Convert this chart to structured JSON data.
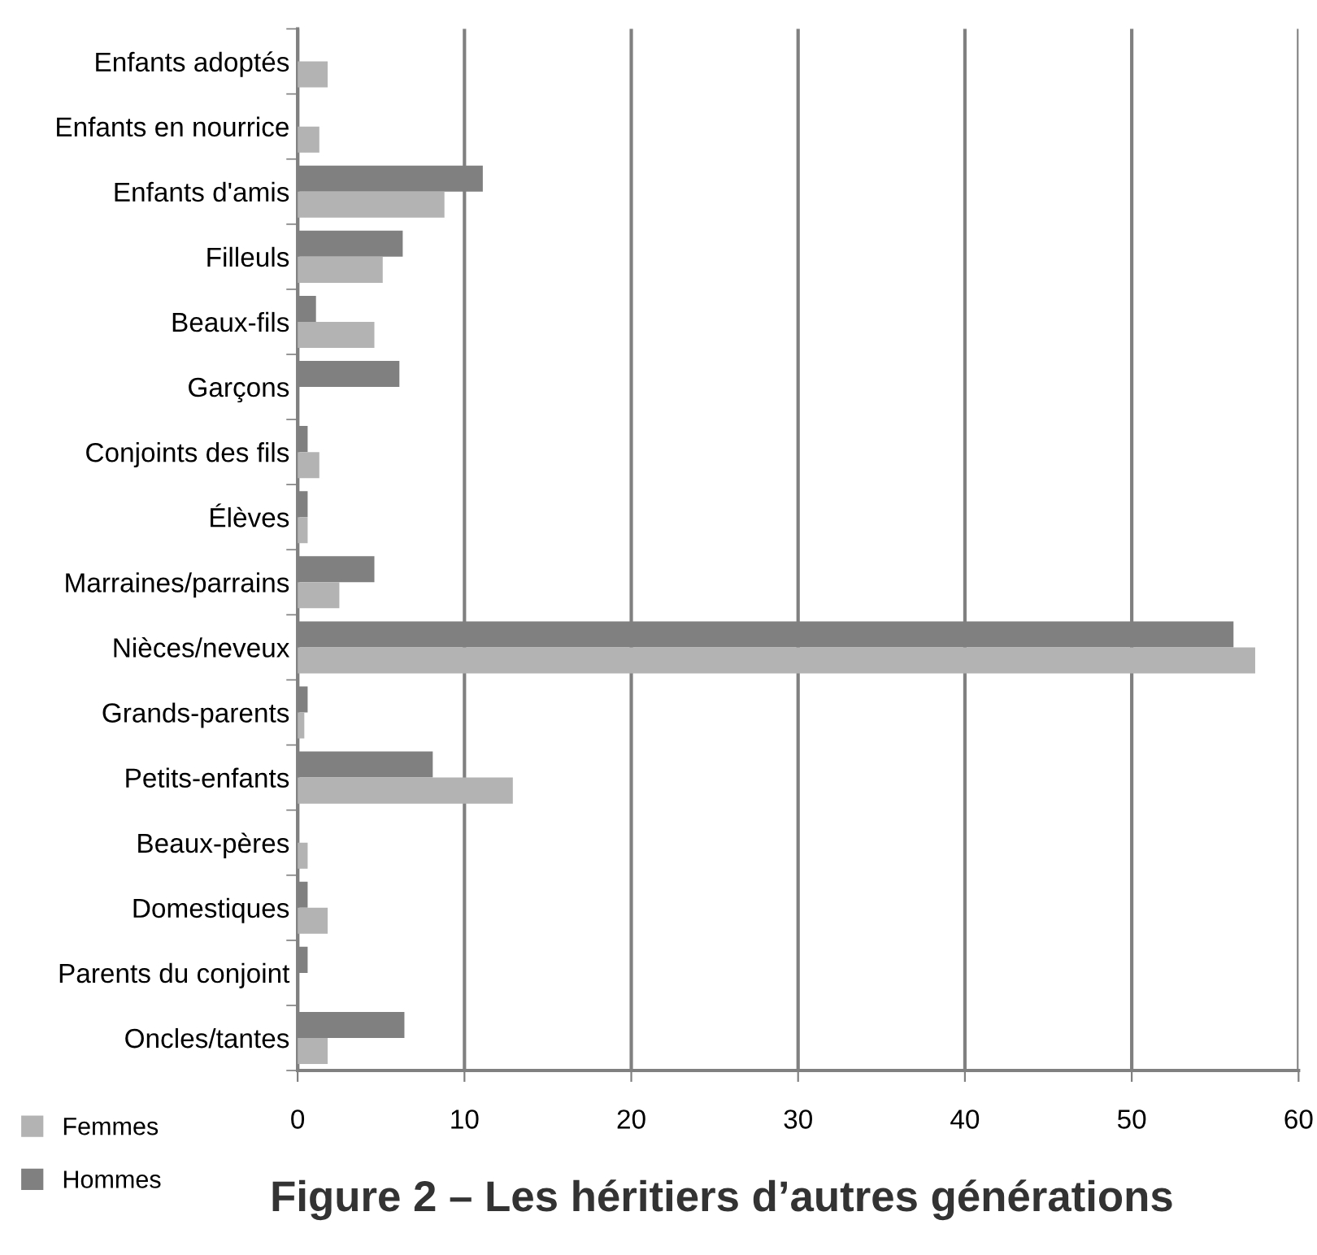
{
  "chart_data": {
    "type": "bar",
    "orientation": "horizontal",
    "title": "Figure 2 – Les héritiers d’autres générations",
    "categories": [
      "Enfants adoptés",
      "Enfants en nourrice",
      "Enfants d'amis",
      "Filleuls",
      "Beaux-fils",
      "Garçons",
      "Conjoints des fils",
      "Élèves",
      "Marraines/parrains",
      "Nièces/neveux",
      "Grands-parents",
      "Petits-enfants",
      "Beaux-pères",
      "Domestiques",
      "Parents du conjoint",
      "Oncles/tantes"
    ],
    "series": [
      {
        "name": "Hommes",
        "color": "#808080",
        "values": [
          0,
          0,
          11.1,
          6.3,
          1.1,
          6.1,
          0.6,
          0.6,
          4.6,
          56.1,
          0.6,
          8.1,
          0,
          0.6,
          0.6,
          6.4
        ]
      },
      {
        "name": "Femmes",
        "color": "#b3b3b3",
        "values": [
          1.8,
          1.3,
          8.8,
          5.1,
          4.6,
          0,
          1.3,
          0.6,
          2.5,
          57.4,
          0.4,
          12.9,
          0.6,
          1.8,
          0,
          1.8
        ]
      }
    ],
    "xlim": [
      0,
      60
    ],
    "xticks": [
      0,
      10,
      20,
      30,
      40,
      50,
      60
    ],
    "grid": "x",
    "legend": "bottom left"
  }
}
